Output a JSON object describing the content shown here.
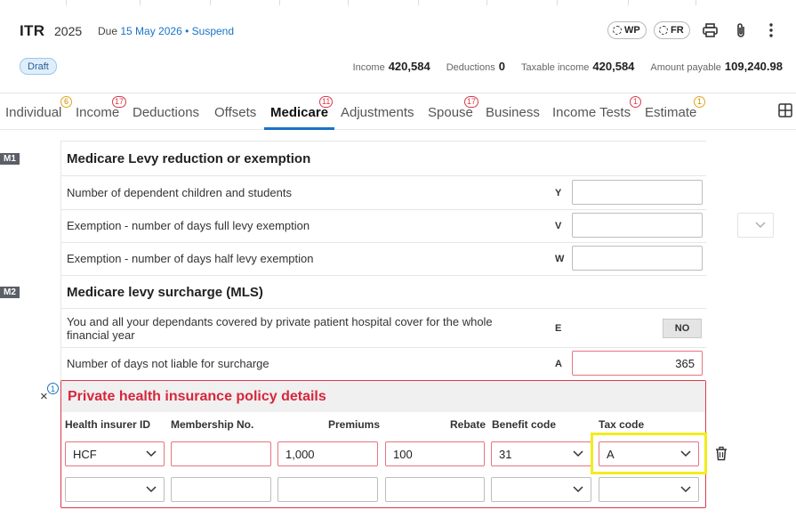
{
  "header": {
    "title": "ITR",
    "year": "2025",
    "due_prefix": "Due",
    "due_date": "15 May 2026",
    "separator": "•",
    "suspend_link": "Suspend",
    "wp_label": "WP",
    "fr_label": "FR",
    "icons": [
      "print-icon",
      "paperclip-icon",
      "more-vertical-icon"
    ]
  },
  "status": {
    "draft_label": "Draft",
    "summary": [
      {
        "label": "Income",
        "value": "420,584"
      },
      {
        "label": "Deductions",
        "value": "0"
      },
      {
        "label": "Taxable income",
        "value": "420,584"
      },
      {
        "label": "Amount payable",
        "value": "109,240.98"
      }
    ]
  },
  "tabs": [
    {
      "label": "Individual",
      "badge": "6",
      "badge_color": "#e1a41a"
    },
    {
      "label": "Income",
      "badge": "17",
      "badge_color": "#d93a4a"
    },
    {
      "label": "Deductions",
      "badge": ""
    },
    {
      "label": "Offsets",
      "badge": ""
    },
    {
      "label": "Medicare",
      "badge": "11",
      "badge_color": "#d93a4a",
      "active": true
    },
    {
      "label": "Adjustments",
      "badge": ""
    },
    {
      "label": "Spouse",
      "badge": "17",
      "badge_color": "#d93a4a"
    },
    {
      "label": "Business",
      "badge": ""
    },
    {
      "label": "Income Tests",
      "badge": "1",
      "badge_color": "#d93a4a"
    },
    {
      "label": "Estimate",
      "badge": "1",
      "badge_color": "#e1a41a"
    }
  ],
  "m1": {
    "tag": "M1",
    "title": "Medicare Levy reduction or exemption",
    "rows": [
      {
        "label": "Number of dependent children and students",
        "code": "Y",
        "value": ""
      },
      {
        "label": "Exemption - number of days full levy exemption",
        "code": "V",
        "value": ""
      },
      {
        "label": "Exemption - number of days half levy exemption",
        "code": "W",
        "value": ""
      }
    ]
  },
  "m2": {
    "tag": "M2",
    "title": "Medicare levy surcharge (MLS)",
    "cover_label_line1": "You and all your dependants covered by private patient hospital cover for the whole",
    "cover_label_line2": "financial year",
    "cover_code": "E",
    "cover_value": "NO",
    "days_label": "Number of days not liable for surcharge",
    "days_code": "A",
    "days_value": "365"
  },
  "policy": {
    "title": "Private health insurance policy details",
    "count_badge": "1",
    "close_symbol": "×",
    "columns": [
      "Health insurer ID",
      "Membership No.",
      "Premiums",
      "Rebate",
      "Benefit code",
      "Tax code"
    ],
    "rows": [
      {
        "insurer": "HCF",
        "membership": "",
        "premiums": "1,000",
        "rebate": "100",
        "benefit": "31",
        "tax_code": "A"
      },
      {
        "insurer": "",
        "membership": "",
        "premiums": "",
        "rebate": "",
        "benefit": "",
        "tax_code": ""
      }
    ]
  },
  "colors": {
    "accent": "#1a73c8",
    "error": "#d93a4a",
    "highlight": "#f3ec1d"
  }
}
